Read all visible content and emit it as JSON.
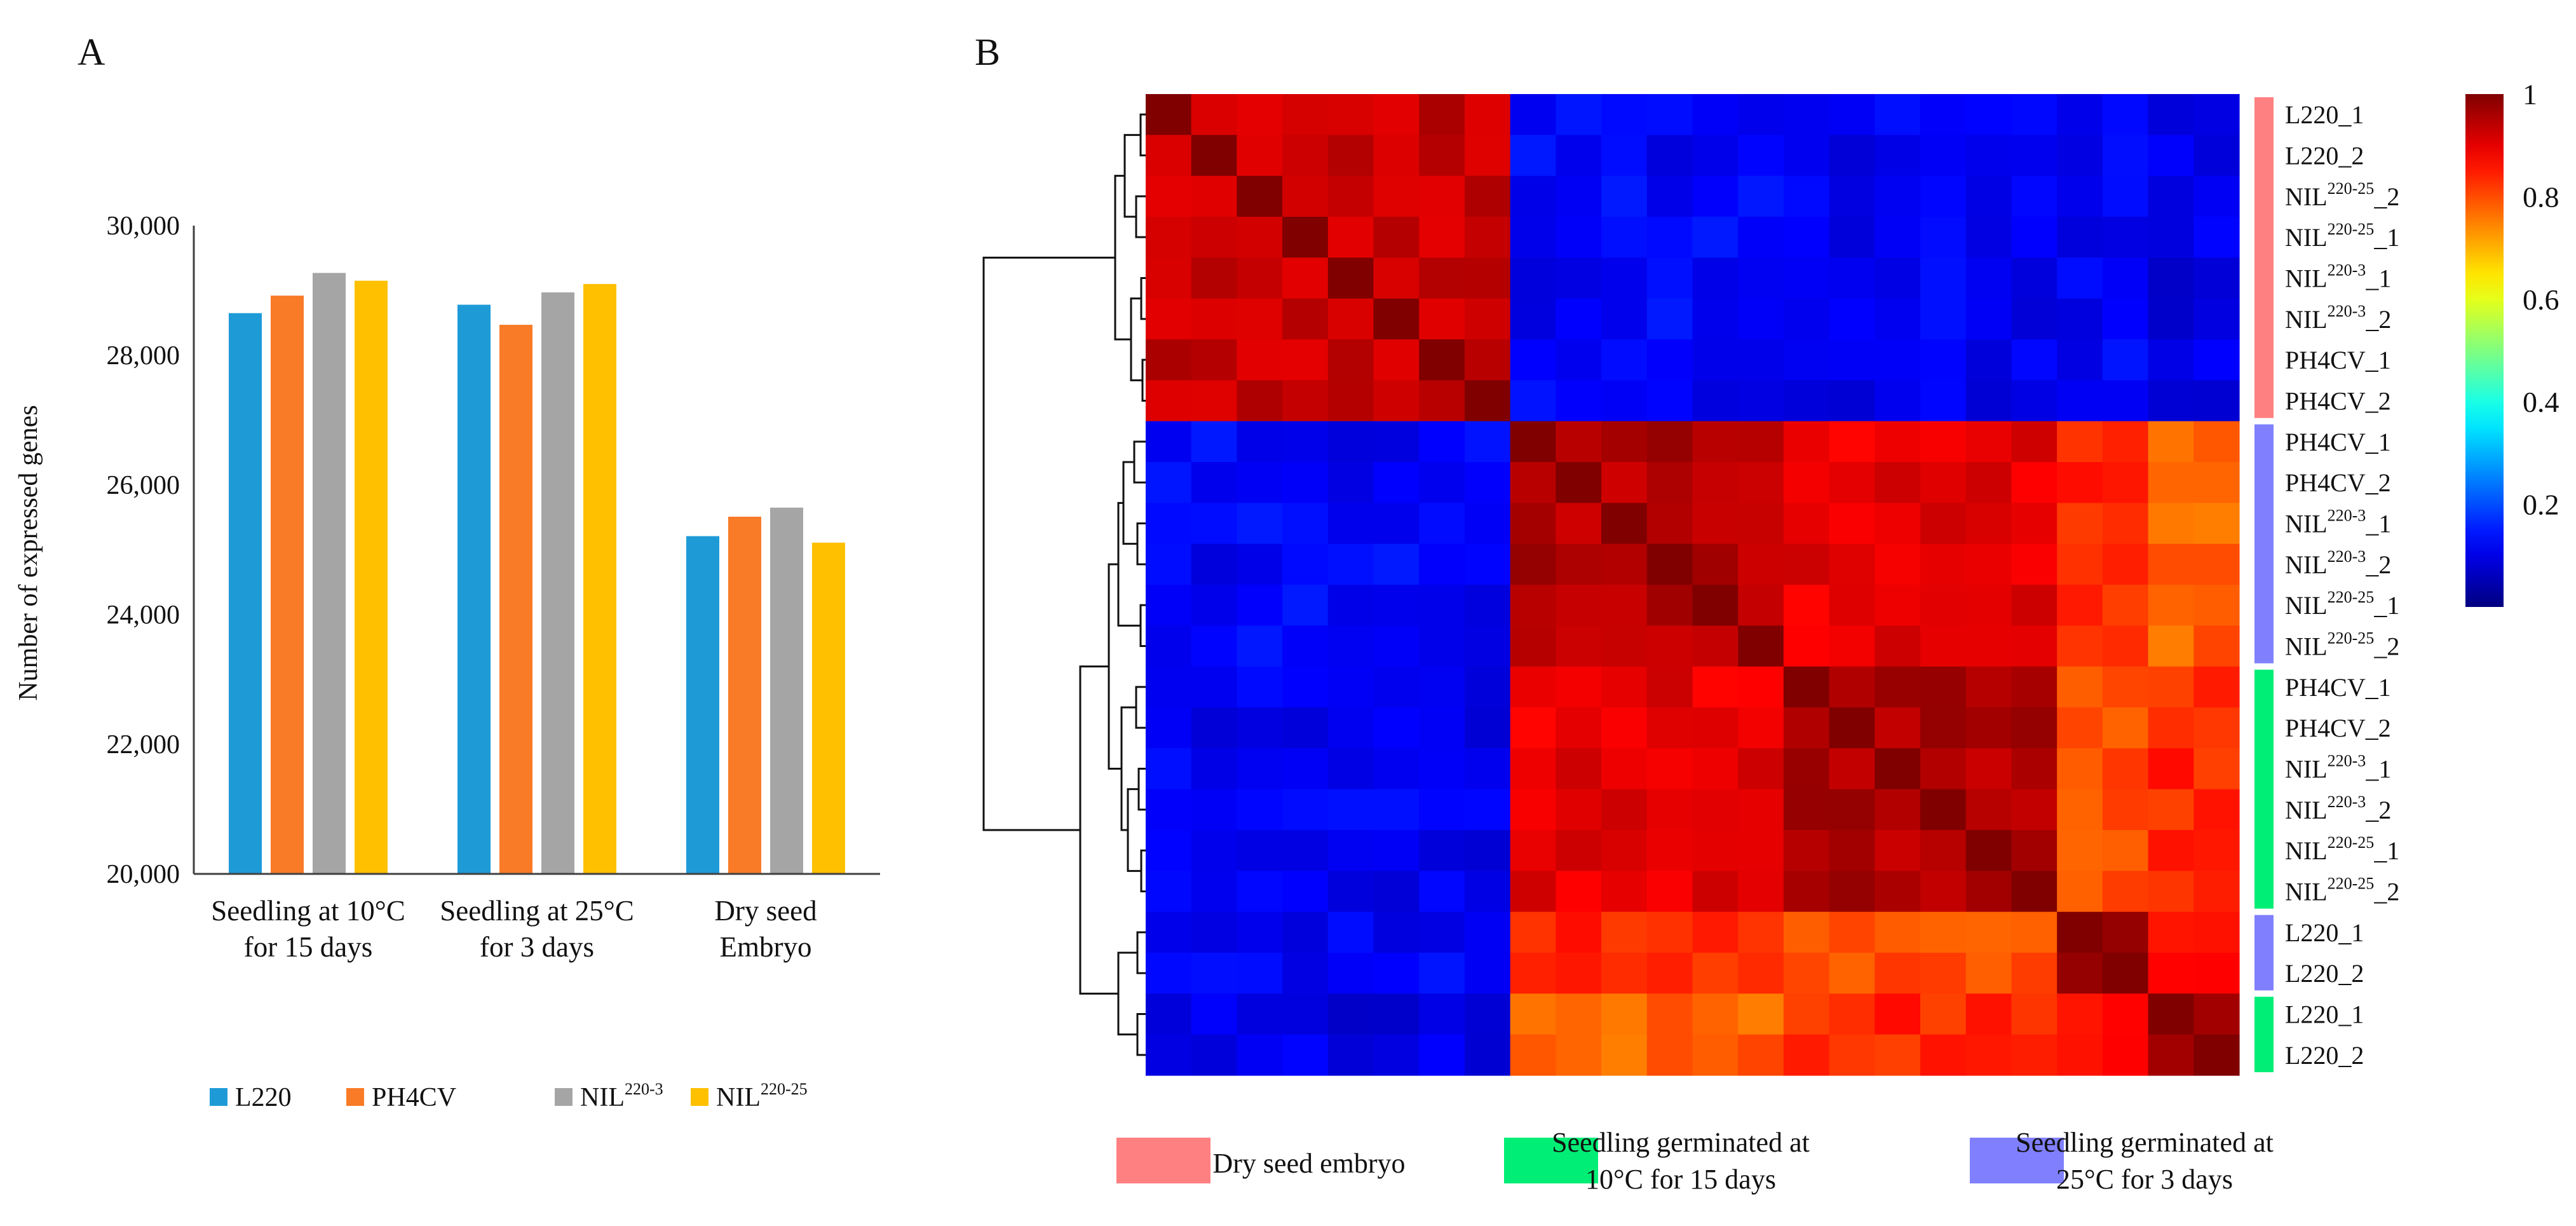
{
  "figure": {
    "panel_a_letter": "A",
    "panel_b_letter": "B"
  },
  "colors": {
    "L220": "#1E9BD7",
    "PH4CV": "#F97A27",
    "NIL220-3": "#A5A5A5",
    "NIL220-25": "#FFC000",
    "dry": "#FF8080",
    "cold": "#00EE76",
    "warm": "#8080FF"
  },
  "chart_data": [
    {
      "type": "bar",
      "title": "",
      "xlabel": "",
      "ylabel": "Number of expressed genes",
      "ylim": [
        20000,
        30000
      ],
      "yticks": [
        "20,000",
        "22,000",
        "24,000",
        "26,000",
        "28,000",
        "30,000"
      ],
      "categories": [
        [
          "Seedling at 10°C",
          "for 15 days"
        ],
        [
          "Seedling at 25°C",
          "for 3 days"
        ],
        [
          "Dry seed",
          "Embryo"
        ]
      ],
      "series": [
        {
          "key": "L220",
          "name": "L220",
          "sup": "",
          "values": [
            28650,
            28780,
            25210
          ]
        },
        {
          "key": "PH4CV",
          "name": "PH4CV",
          "sup": "",
          "values": [
            28920,
            28470,
            25510
          ]
        },
        {
          "key": "NIL220-3",
          "name": "NIL",
          "sup": "220-3",
          "values": [
            29270,
            28970,
            25650
          ]
        },
        {
          "key": "NIL220-25",
          "name": "NIL",
          "sup": "220-25",
          "values": [
            29150,
            29100,
            25110
          ]
        }
      ],
      "legend": "bottom"
    },
    {
      "type": "heatmap",
      "title": "",
      "value_range": [
        0,
        1
      ],
      "colorbar_ticks": [
        "0.2",
        "0.4",
        "0.6",
        "0.8",
        "1"
      ],
      "colorbar_tick_values": [
        0.2,
        0.4,
        0.6,
        0.8,
        1.0
      ],
      "rows": [
        {
          "name": "L220_1",
          "sup": "",
          "suffix": "",
          "group": "dry"
        },
        {
          "name": "L220_2",
          "sup": "",
          "suffix": "",
          "group": "dry"
        },
        {
          "name": "NIL",
          "sup": "220-25",
          "suffix": "_2",
          "group": "dry"
        },
        {
          "name": "NIL",
          "sup": "220-25",
          "suffix": "_1",
          "group": "dry"
        },
        {
          "name": "NIL",
          "sup": "220-3",
          "suffix": "_1",
          "group": "dry"
        },
        {
          "name": "NIL",
          "sup": "220-3",
          "suffix": "_2",
          "group": "dry"
        },
        {
          "name": "PH4CV_1",
          "sup": "",
          "suffix": "",
          "group": "dry"
        },
        {
          "name": "PH4CV_2",
          "sup": "",
          "suffix": "",
          "group": "dry"
        },
        {
          "name": "PH4CV_1",
          "sup": "",
          "suffix": "",
          "group": "warm"
        },
        {
          "name": "PH4CV_2",
          "sup": "",
          "suffix": "",
          "group": "warm"
        },
        {
          "name": "NIL",
          "sup": "220-3",
          "suffix": "_1",
          "group": "warm"
        },
        {
          "name": "NIL",
          "sup": "220-3",
          "suffix": "_2",
          "group": "warm"
        },
        {
          "name": "NIL",
          "sup": "220-25",
          "suffix": "_1",
          "group": "warm"
        },
        {
          "name": "NIL",
          "sup": "220-25",
          "suffix": "_2",
          "group": "warm"
        },
        {
          "name": "PH4CV_1",
          "sup": "",
          "suffix": "",
          "group": "cold"
        },
        {
          "name": "PH4CV_2",
          "sup": "",
          "suffix": "",
          "group": "cold"
        },
        {
          "name": "NIL",
          "sup": "220-3",
          "suffix": "_1",
          "group": "cold"
        },
        {
          "name": "NIL",
          "sup": "220-3",
          "suffix": "_2",
          "group": "cold"
        },
        {
          "name": "NIL",
          "sup": "220-25",
          "suffix": "_1",
          "group": "cold"
        },
        {
          "name": "NIL",
          "sup": "220-25",
          "suffix": "_2",
          "group": "cold"
        },
        {
          "name": "L220_1",
          "sup": "",
          "suffix": "",
          "group": "warm"
        },
        {
          "name": "L220_2",
          "sup": "",
          "suffix": "",
          "group": "warm"
        },
        {
          "name": "L220_1",
          "sup": "",
          "suffix": "",
          "group": "cold"
        },
        {
          "name": "L220_2",
          "sup": "",
          "suffix": "",
          "group": "cold"
        }
      ],
      "blocks": [
        0,
        0,
        0,
        0,
        0,
        0,
        0,
        0,
        1,
        1,
        1,
        1,
        1,
        1,
        2,
        2,
        2,
        2,
        2,
        2,
        3,
        3,
        4,
        4
      ],
      "block_correlation": [
        [
          0.93,
          0.12,
          0.11,
          0.12,
          0.1
        ],
        [
          0.12,
          0.95,
          0.9,
          0.84,
          0.78
        ],
        [
          0.11,
          0.9,
          0.95,
          0.8,
          0.84
        ],
        [
          0.12,
          0.84,
          0.8,
          0.97,
          0.87
        ],
        [
          0.1,
          0.78,
          0.84,
          0.87,
          0.98
        ]
      ],
      "legend": [
        {
          "group": "dry",
          "label": [
            "Dry seed embryo"
          ]
        },
        {
          "group": "cold",
          "label": [
            "Seedling germinated at",
            "10°C for 15 days"
          ]
        },
        {
          "group": "warm",
          "label": [
            "Seedling germinated at",
            "25°C for 3 days"
          ]
        }
      ]
    }
  ]
}
